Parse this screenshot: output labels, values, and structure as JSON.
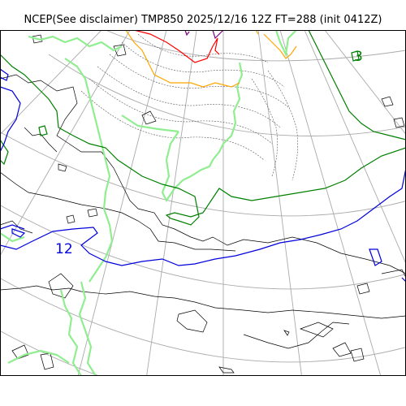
{
  "title": "NCEP(See disclaimer) TMP850 2025/12/16 12Z FT=288 (init 0412Z)",
  "contour_labels": {
    "blue_label": "12",
    "green_label": "3"
  },
  "colors": {
    "coastline": "#000000",
    "graticule": "#aaaaaa",
    "light_green": "#90ee90",
    "green": "#008000",
    "blue": "#0000dd",
    "orange": "#ffa500",
    "red": "#ff0000",
    "purple": "#800080",
    "thin_contour": "#555555"
  }
}
